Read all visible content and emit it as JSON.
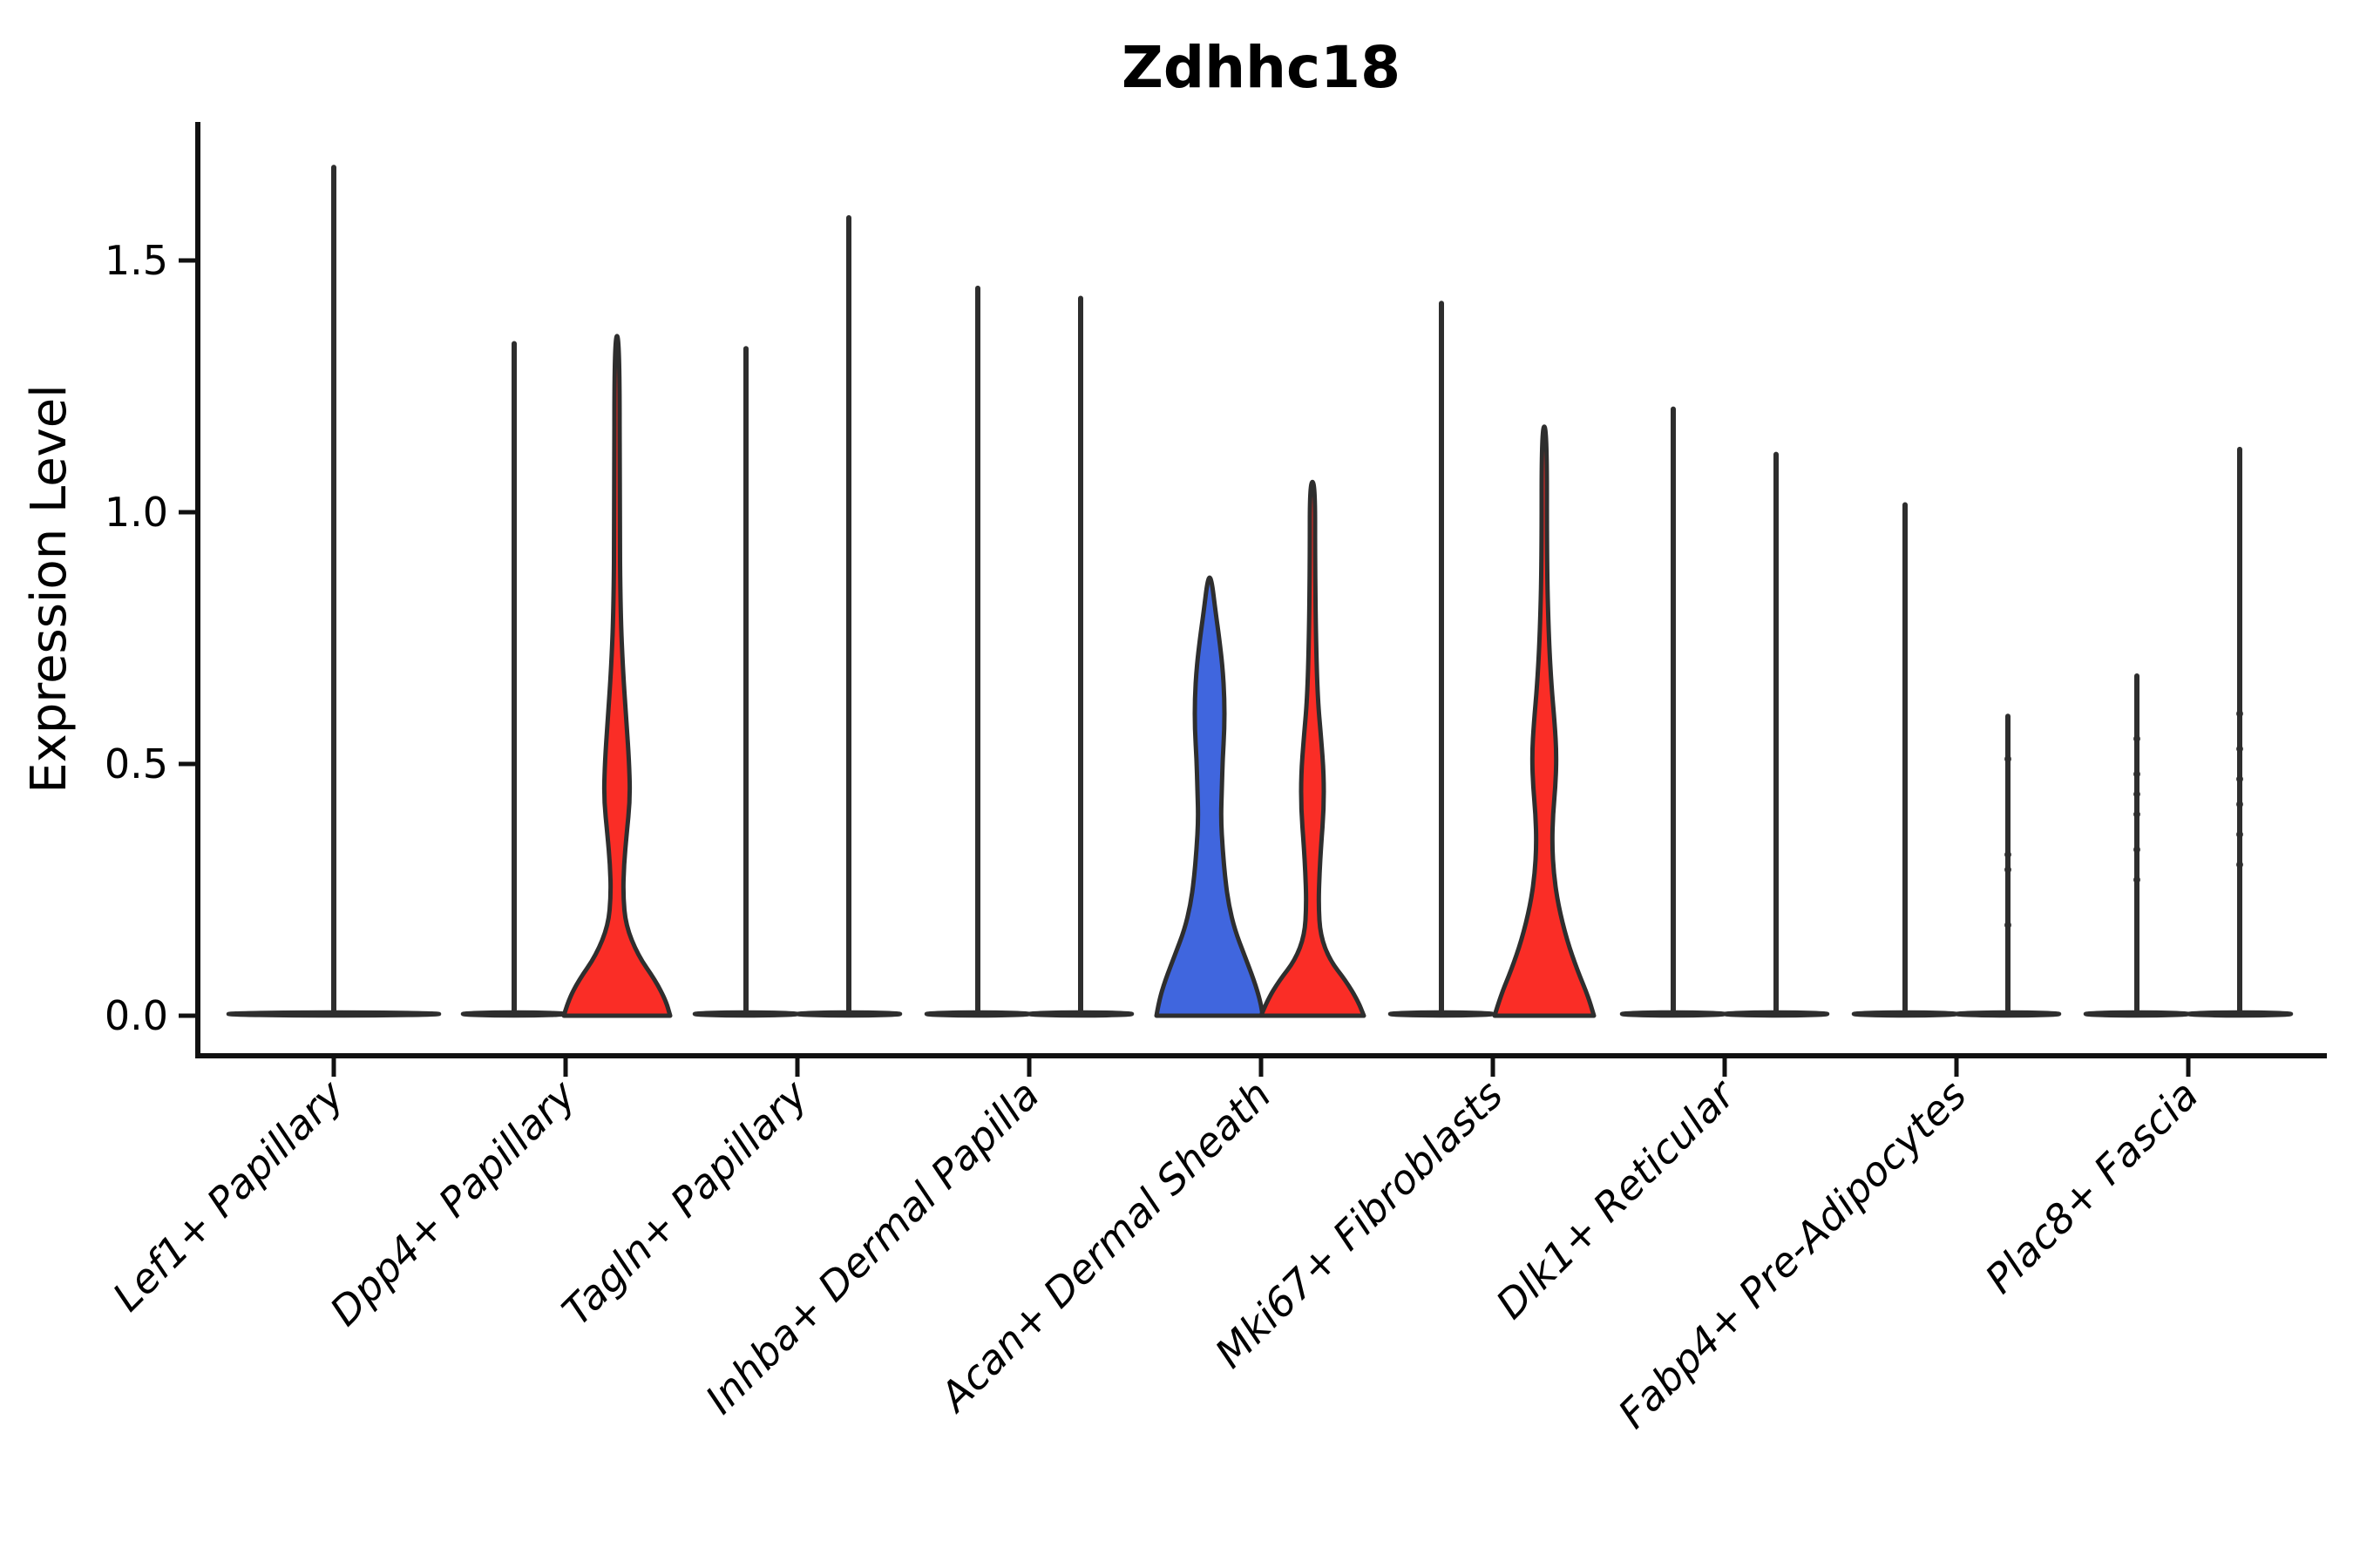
{
  "title": "Zdhhc18",
  "y_axis": {
    "label": "Expression Level",
    "tick_labels": [
      "0.0",
      "0.5",
      "1.0",
      "1.5"
    ]
  },
  "x_axis": {
    "categories": [
      "Lef1+ Papillary",
      "Dpp4+ Papillary",
      "Tagln+ Papillary",
      "Inhba+ Dermal Papilla",
      "Acan+ Dermal Sheath",
      "Mki67+ Fibroblasts",
      "Dlk1+ Reticular",
      "Fabp4+ Pre-Adipocytes",
      "Plac8+ Fascia"
    ]
  },
  "colors": {
    "violin_red": "#fa2d26",
    "violin_blue": "#4066de",
    "violin_white": "#ffffff",
    "violin_outline": "#2e2e2e",
    "axis": "#111111",
    "background": "#ffffff"
  },
  "chart_data": {
    "type": "violin",
    "title": "Zdhhc18",
    "xlabel": "",
    "ylabel": "Expression Level",
    "categories": [
      "Lef1+ Papillary",
      "Dpp4+ Papillary",
      "Tagln+ Papillary",
      "Inhba+ Dermal Papilla",
      "Acan+ Dermal Sheath",
      "Mki67+ Fibroblasts",
      "Dlk1+ Reticular",
      "Fabp4+ Pre-Adipocytes",
      "Plac8+ Fascia"
    ],
    "yticks": [
      0.0,
      0.5,
      1.0,
      1.5
    ],
    "ylim": [
      -0.08,
      1.77
    ],
    "grid": false,
    "legend": "none",
    "violins": [
      {
        "category": "Lef1+ Papillary",
        "split": "single",
        "color": "white",
        "max_expression": 1.69,
        "median": 0.0,
        "base": "wide",
        "dots": []
      },
      {
        "category": "Dpp4+ Papillary",
        "split": 1,
        "color": "white",
        "max_expression": 1.34,
        "median": 0.0,
        "base": "normal",
        "dots": []
      },
      {
        "category": "Dpp4+ Papillary",
        "split": 2,
        "color": "red",
        "max_expression": 1.35,
        "median": 0.0,
        "base": "normal",
        "dots": [],
        "profile": [
          [
            0,
            61
          ],
          [
            0.03,
            56
          ],
          [
            0.07,
            44
          ],
          [
            0.12,
            24
          ],
          [
            0.18,
            10
          ],
          [
            0.24,
            7
          ],
          [
            0.3,
            8
          ],
          [
            0.36,
            11
          ],
          [
            0.43,
            15
          ],
          [
            0.5,
            14
          ],
          [
            0.58,
            11
          ],
          [
            0.68,
            7
          ],
          [
            0.8,
            4
          ],
          [
            1.0,
            3
          ],
          [
            1.35,
            3
          ]
        ]
      },
      {
        "category": "Tagln+ Papillary",
        "split": 1,
        "color": "white",
        "max_expression": 1.33,
        "median": 0.0,
        "base": "normal",
        "dots": []
      },
      {
        "category": "Tagln+ Papillary",
        "split": 2,
        "color": "white",
        "max_expression": 1.59,
        "median": 0.0,
        "base": "normal",
        "dots": []
      },
      {
        "category": "Inhba+ Dermal Papilla",
        "split": 1,
        "color": "white",
        "max_expression": 1.45,
        "median": 0.0,
        "base": "normal",
        "dots": []
      },
      {
        "category": "Inhba+ Dermal Papilla",
        "split": 2,
        "color": "white",
        "max_expression": 1.43,
        "median": 0.0,
        "base": "normal",
        "dots": []
      },
      {
        "category": "Acan+ Dermal Sheath",
        "split": 1,
        "color": "blue",
        "max_expression": 0.87,
        "median": 0.0,
        "base": "normal",
        "dots": [],
        "profile": [
          [
            0,
            61
          ],
          [
            0.03,
            58
          ],
          [
            0.07,
            51
          ],
          [
            0.12,
            40
          ],
          [
            0.17,
            29
          ],
          [
            0.22,
            22
          ],
          [
            0.27,
            18
          ],
          [
            0.33,
            15
          ],
          [
            0.39,
            13
          ],
          [
            0.45,
            14
          ],
          [
            0.51,
            15
          ],
          [
            0.57,
            17
          ],
          [
            0.63,
            17
          ],
          [
            0.69,
            15
          ],
          [
            0.75,
            11
          ],
          [
            0.8,
            7
          ],
          [
            0.87,
            2
          ]
        ]
      },
      {
        "category": "Acan+ Dermal Sheath",
        "split": 2,
        "color": "red",
        "max_expression": 1.06,
        "median": 0.0,
        "base": "normal",
        "dots": [],
        "profile": [
          [
            0,
            59
          ],
          [
            0.03,
            52
          ],
          [
            0.07,
            38
          ],
          [
            0.11,
            20
          ],
          [
            0.16,
            9
          ],
          [
            0.22,
            7
          ],
          [
            0.28,
            8
          ],
          [
            0.34,
            10
          ],
          [
            0.41,
            13
          ],
          [
            0.48,
            13
          ],
          [
            0.55,
            10
          ],
          [
            0.63,
            6
          ],
          [
            0.75,
            4
          ],
          [
            0.9,
            3
          ],
          [
            1.06,
            3
          ]
        ]
      },
      {
        "category": "Mki67+ Fibroblasts",
        "split": 1,
        "color": "white",
        "max_expression": 1.42,
        "median": 0.0,
        "base": "normal",
        "dots": []
      },
      {
        "category": "Mki67+ Fibroblasts",
        "split": 2,
        "color": "red",
        "max_expression": 1.17,
        "median": 0.0,
        "base": "normal",
        "dots": [],
        "profile": [
          [
            0,
            57
          ],
          [
            0.04,
            50
          ],
          [
            0.09,
            38
          ],
          [
            0.15,
            26
          ],
          [
            0.22,
            16
          ],
          [
            0.28,
            11
          ],
          [
            0.34,
            9
          ],
          [
            0.4,
            10
          ],
          [
            0.46,
            13
          ],
          [
            0.52,
            14
          ],
          [
            0.58,
            12
          ],
          [
            0.66,
            8
          ],
          [
            0.76,
            5
          ],
          [
            0.9,
            3
          ],
          [
            1.17,
            3
          ]
        ]
      },
      {
        "category": "Dlk1+ Reticular",
        "split": 1,
        "color": "white",
        "max_expression": 1.21,
        "median": 0.0,
        "base": "normal",
        "dots": []
      },
      {
        "category": "Dlk1+ Reticular",
        "split": 2,
        "color": "white",
        "max_expression": 1.12,
        "median": 0.0,
        "base": "normal",
        "dots": []
      },
      {
        "category": "Fabp4+ Pre-Adipocytes",
        "split": 1,
        "color": "white",
        "max_expression": 1.02,
        "median": 0.0,
        "base": "normal",
        "dots": []
      },
      {
        "category": "Fabp4+ Pre-Adipocytes",
        "split": 2,
        "color": "white",
        "max_expression": 0.6,
        "median": 0.0,
        "base": "normal",
        "dots": [
          0.51,
          0.32,
          0.29,
          0.18
        ]
      },
      {
        "category": "Plac8+ Fascia",
        "split": 1,
        "color": "white",
        "max_expression": 0.68,
        "median": 0.0,
        "base": "normal",
        "dots": [
          0.55,
          0.48,
          0.44,
          0.4,
          0.33,
          0.27
        ]
      },
      {
        "category": "Plac8+ Fascia",
        "split": 2,
        "color": "white",
        "max_expression": 1.13,
        "median": 0.0,
        "base": "normal",
        "dots": [
          0.6,
          0.53,
          0.47,
          0.42,
          0.36,
          0.3
        ]
      }
    ]
  }
}
